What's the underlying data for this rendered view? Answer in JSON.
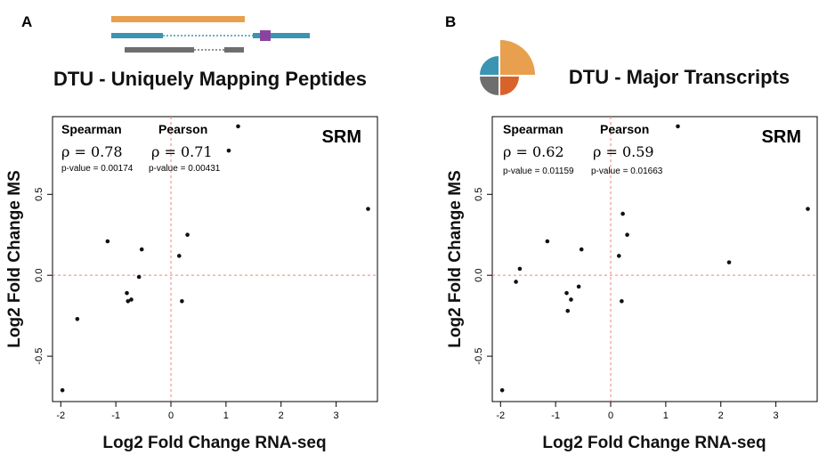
{
  "colors": {
    "orange": "#E8A04E",
    "teal": "#3A95B2",
    "purple": "#8A44A0",
    "gray": "#6E6E6E",
    "refline": "#F08080",
    "point": "#111111",
    "pie_orange_dark": "#D9622B"
  },
  "panels": [
    {
      "letter": "A",
      "title": "DTU - Uniquely Mapping Peptides",
      "badge": "SRM",
      "corr": {
        "spearman_label": "Spearman",
        "pearson_label": "Pearson",
        "spearman_rho": "ρ  = 0.78",
        "pearson_rho": "ρ  = 0.71",
        "spearman_p": "p-value = 0.00174",
        "pearson_p": "p-value = 0.00431"
      }
    },
    {
      "letter": "B",
      "title": "DTU - Major Transcripts",
      "badge": "SRM",
      "corr": {
        "spearman_label": "Spearman",
        "pearson_label": "Pearson",
        "spearman_rho": "ρ  = 0.62",
        "pearson_rho": "ρ  = 0.59",
        "spearman_p": "p-value = 0.01159",
        "pearson_p": "p-value = 0.01663"
      }
    }
  ],
  "chart_data": [
    {
      "type": "scatter",
      "xlabel": "Log2 Fold Change RNA-seq",
      "ylabel": "Log2 Fold Change MS",
      "xlim": [
        -2.15,
        3.75
      ],
      "ylim": [
        -0.78,
        0.98
      ],
      "xticks": [
        -2,
        -1,
        0,
        1,
        2,
        3
      ],
      "xtick_labels": [
        "-2",
        "-1",
        "0",
        "1",
        "2",
        "3"
      ],
      "yticks": [
        -0.5,
        0.0,
        0.5
      ],
      "ytick_labels": [
        "-0.5",
        "0.0",
        "0.5"
      ],
      "reference_lines": {
        "x": 0,
        "y": 0
      },
      "points": [
        [
          -1.97,
          -0.71
        ],
        [
          -1.7,
          -0.27
        ],
        [
          -1.15,
          0.21
        ],
        [
          -0.8,
          -0.11
        ],
        [
          -0.78,
          -0.16
        ],
        [
          -0.72,
          -0.15
        ],
        [
          -0.58,
          -0.01
        ],
        [
          -0.53,
          0.16
        ],
        [
          0.15,
          0.12
        ],
        [
          0.2,
          -0.16
        ],
        [
          0.3,
          0.25
        ],
        [
          1.05,
          0.77
        ],
        [
          1.22,
          0.92
        ],
        [
          3.58,
          0.41
        ]
      ]
    },
    {
      "type": "scatter",
      "xlabel": "Log2 Fold Change RNA-seq",
      "ylabel": "Log2 Fold Change MS",
      "xlim": [
        -2.15,
        3.75
      ],
      "ylim": [
        -0.78,
        0.98
      ],
      "xticks": [
        -2,
        -1,
        0,
        1,
        2,
        3
      ],
      "xtick_labels": [
        "-2",
        "-1",
        "0",
        "1",
        "2",
        "3"
      ],
      "yticks": [
        -0.5,
        0.0,
        0.5
      ],
      "ytick_labels": [
        "-0.5",
        "0.0",
        "0.5"
      ],
      "reference_lines": {
        "x": 0,
        "y": 0
      },
      "points": [
        [
          -1.97,
          -0.71
        ],
        [
          -1.72,
          -0.04
        ],
        [
          -1.65,
          0.04
        ],
        [
          -1.15,
          0.21
        ],
        [
          -0.8,
          -0.11
        ],
        [
          -0.78,
          -0.22
        ],
        [
          -0.72,
          -0.15
        ],
        [
          -0.58,
          -0.07
        ],
        [
          -0.53,
          0.16
        ],
        [
          0.15,
          0.12
        ],
        [
          0.2,
          -0.16
        ],
        [
          0.22,
          0.38
        ],
        [
          0.3,
          0.25
        ],
        [
          1.22,
          0.92
        ],
        [
          2.15,
          0.08
        ],
        [
          3.58,
          0.41
        ]
      ]
    }
  ]
}
